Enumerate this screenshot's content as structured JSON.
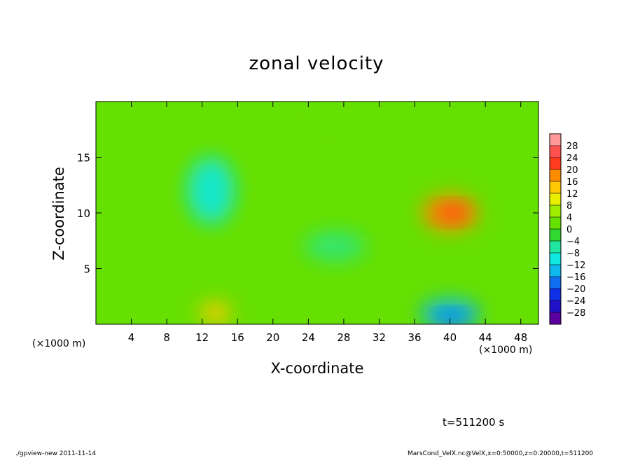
{
  "chart_data": {
    "type": "heatmap",
    "title": "zonal velocity",
    "xlabel": "X-coordinate",
    "ylabel": "Z-coordinate",
    "x_unit_label": "(×1000 m)",
    "x_ticks": [
      4,
      8,
      12,
      16,
      20,
      24,
      28,
      32,
      36,
      40,
      44,
      48
    ],
    "y_ticks": [
      5,
      10,
      15
    ],
    "xlim": [
      0,
      50
    ],
    "ylim": [
      0,
      20
    ],
    "colorbar": {
      "levels": [
        -28,
        -24,
        -20,
        -16,
        -12,
        -8,
        -4,
        0,
        4,
        8,
        12,
        16,
        20,
        24,
        28
      ],
      "colors": [
        "#5a00a0",
        "#2010c8",
        "#1030e8",
        "#1070f0",
        "#10b8f0",
        "#10e8e0",
        "#20e8a0",
        "#30d830",
        "#66e000",
        "#a0ec00",
        "#e8f000",
        "#ffc800",
        "#ff8c00",
        "#ff3c1e",
        "#ff5050",
        "#ff9a9a"
      ]
    },
    "features": [
      {
        "x": 13,
        "z": 12,
        "value": -10
      },
      {
        "x": 40,
        "z": 10,
        "value": 17
      },
      {
        "x": 40,
        "z": 1,
        "value": -15
      },
      {
        "x": 13.5,
        "z": 1,
        "value": 12
      },
      {
        "x": 27,
        "z": 7,
        "value": -7
      },
      {
        "x": 26,
        "z": 16.5,
        "value": 3
      }
    ],
    "grid": false
  },
  "annotations": {
    "time": "t=511200 s",
    "footer_left": "./gpview-new  2011-11-14",
    "footer_right": "MarsCond_VelX.nc@VelX,x=0:50000,z=0:20000,t=511200"
  },
  "colors": {
    "background": "#ffffff",
    "axis": "#000000",
    "base_field": "#66e000"
  }
}
